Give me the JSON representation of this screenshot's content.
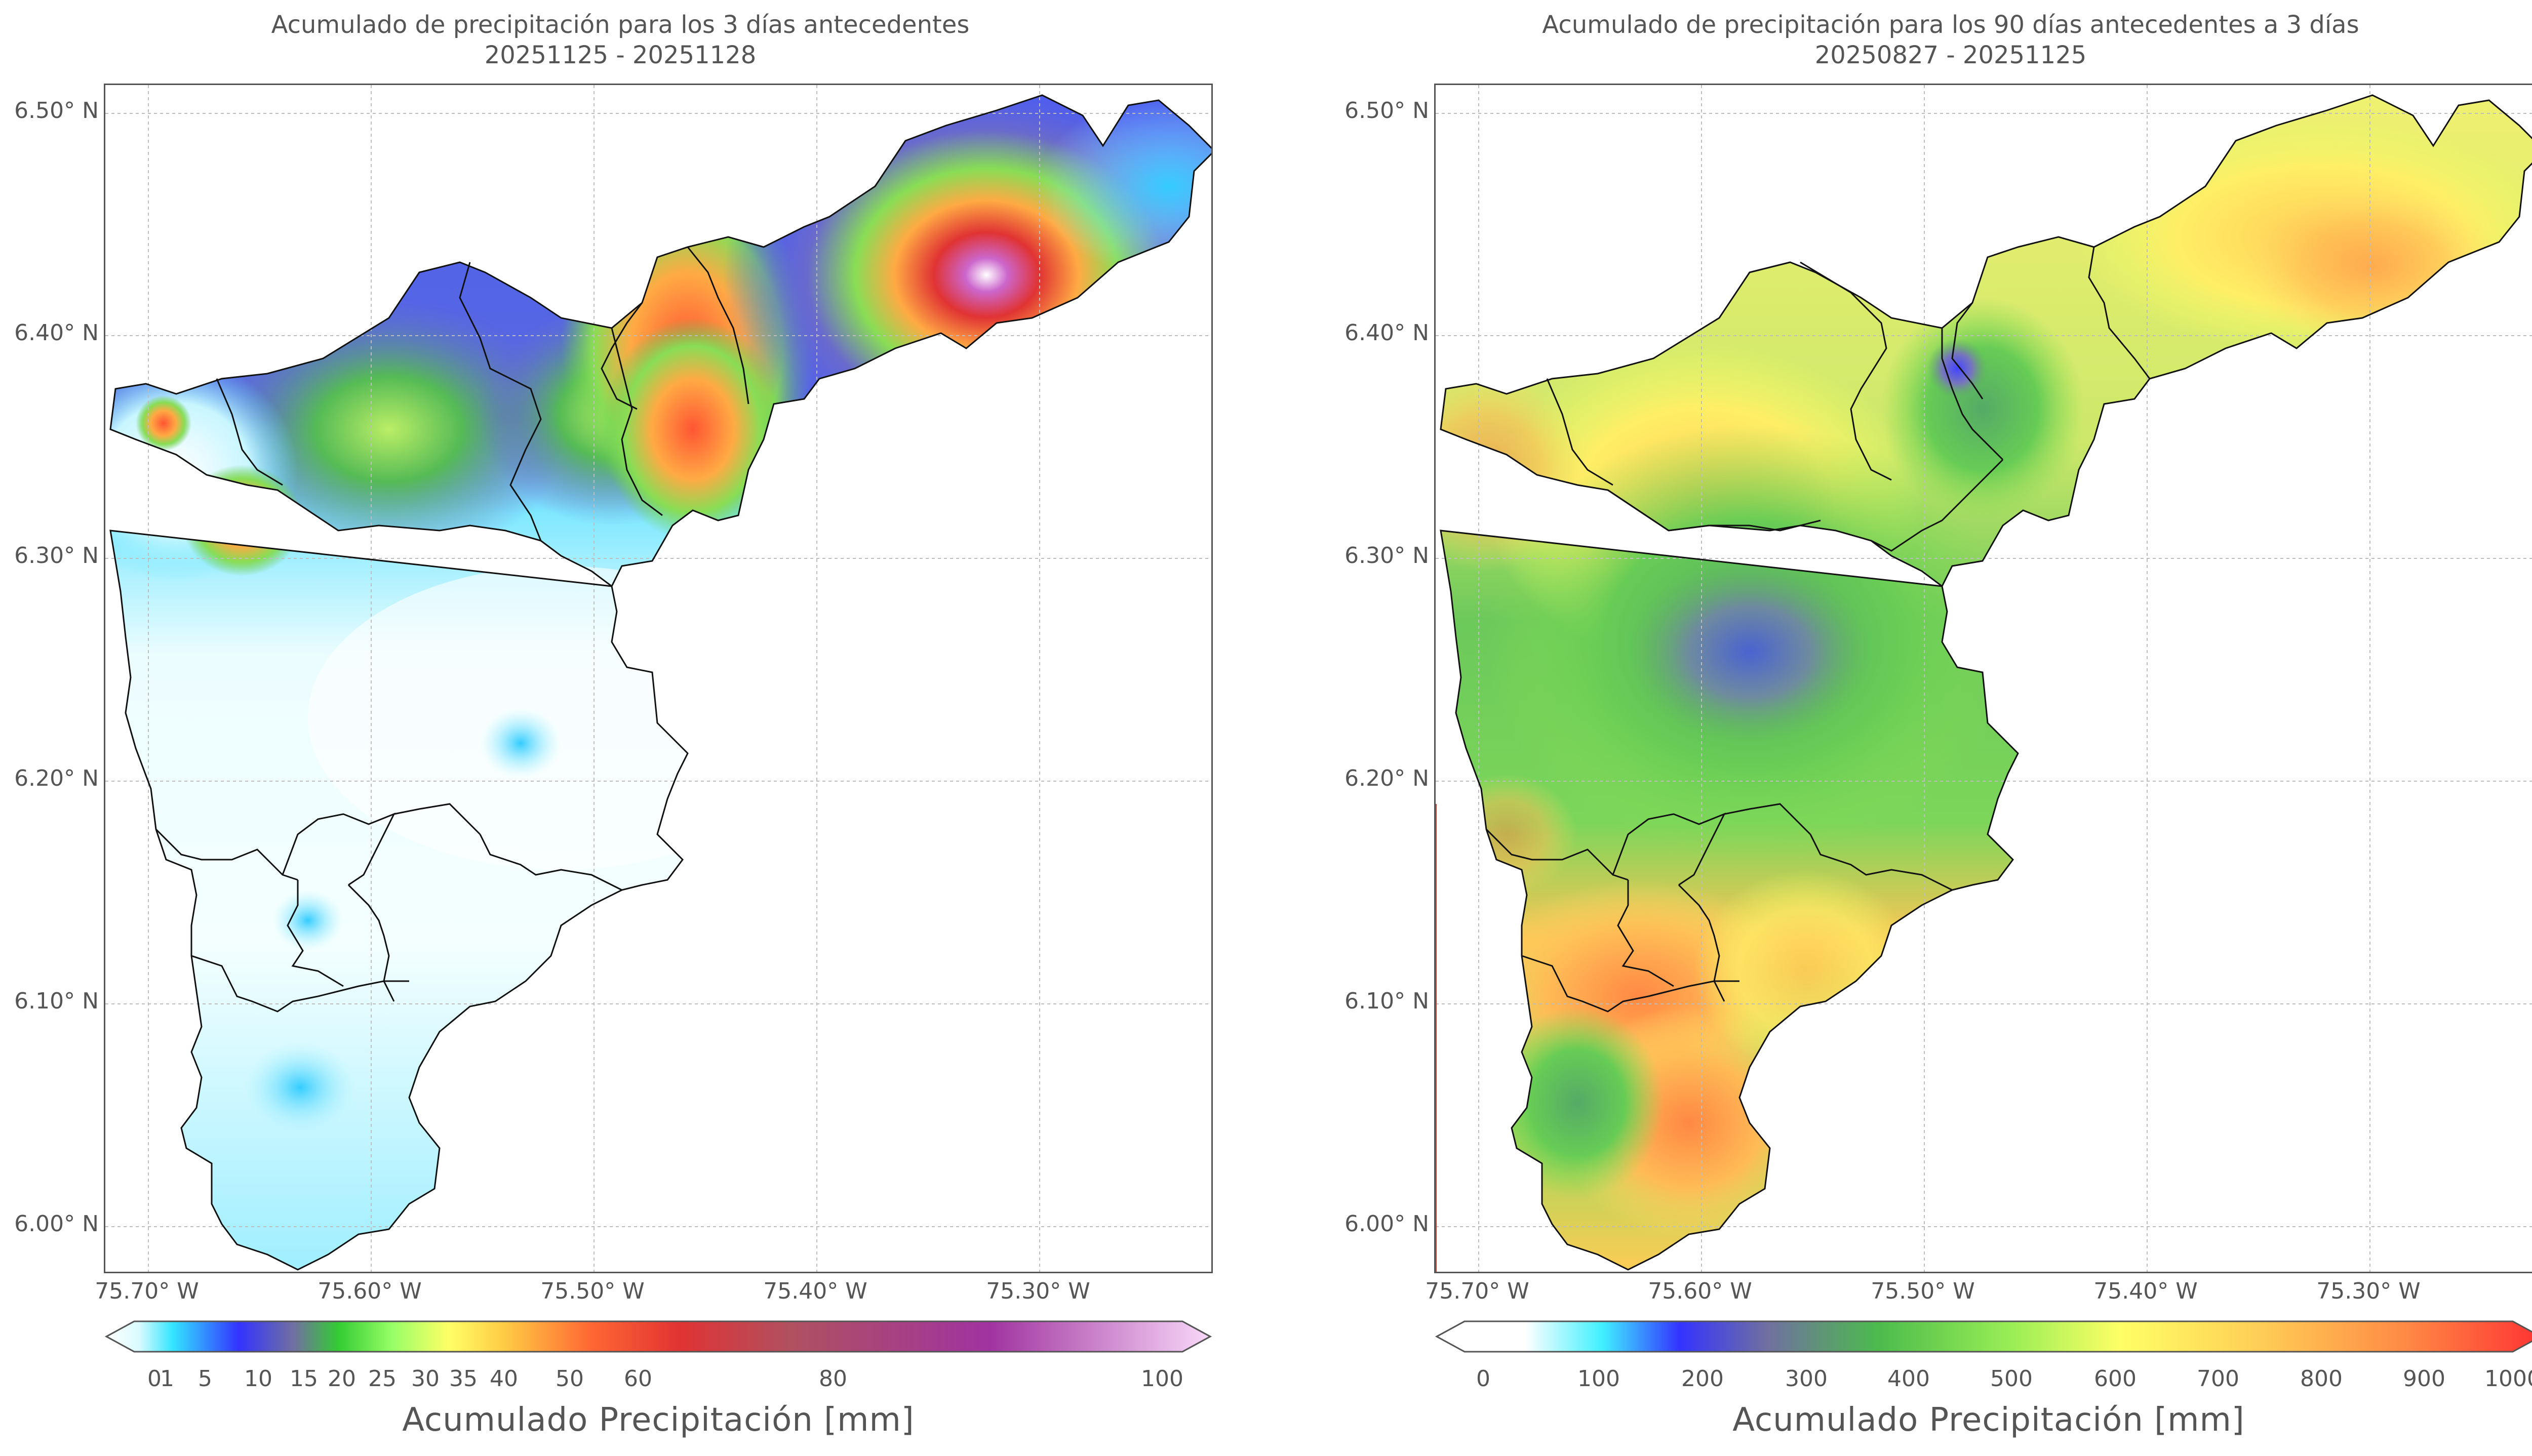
{
  "left_panel": {
    "title_line1": "Acumulado de precipitación para los 3 días antecedentes",
    "title_line2": "20251125 - 20251128",
    "y_ticks": [
      "6.50° N",
      "6.40° N",
      "6.30° N",
      "6.20° N",
      "6.10° N",
      "6.00° N"
    ],
    "x_ticks": [
      "75.70° W",
      "75.60° W",
      "75.50° W",
      "75.40° W",
      "75.30° W"
    ],
    "colorbar": {
      "ticks": [
        "0",
        "1",
        "5",
        "10",
        "15",
        "20",
        "25",
        "30",
        "35",
        "40",
        "50",
        "60",
        "80",
        "100"
      ],
      "label": "Acumulado Precipitación [mm]",
      "colors": [
        "#ffffff",
        "#e6ffff",
        "#33e5ff",
        "#3333ff",
        "#7070a0",
        "#33cc33",
        "#99ff66",
        "#ffff66",
        "#ffcc44",
        "#ff6633",
        "#e03333",
        "#b04060",
        "#a033a0",
        "#f0c0f0"
      ]
    }
  },
  "right_panel": {
    "title_line1": "Acumulado de precipitación para los 90 días antecedentes a 3 días",
    "title_line2": "20250827 - 20251125",
    "y_ticks": [
      "6.50° N",
      "6.40° N",
      "6.30° N",
      "6.20° N",
      "6.10° N",
      "6.00° N"
    ],
    "x_ticks": [
      "75.70° W",
      "75.60° W",
      "75.50° W",
      "75.40° W",
      "75.30° W"
    ],
    "colorbar": {
      "ticks": [
        "0",
        "100",
        "200",
        "300",
        "400",
        "500",
        "600",
        "700",
        "800",
        "900",
        "1000"
      ],
      "label": "Acumulado Precipitación [mm]",
      "colors": [
        "#ffffff",
        "#40f0ff",
        "#3333ff",
        "#7070a0",
        "#4cbb4c",
        "#99ee55",
        "#ffff66",
        "#ffcc55",
        "#ff8844",
        "#ff3333"
      ]
    }
  }
}
